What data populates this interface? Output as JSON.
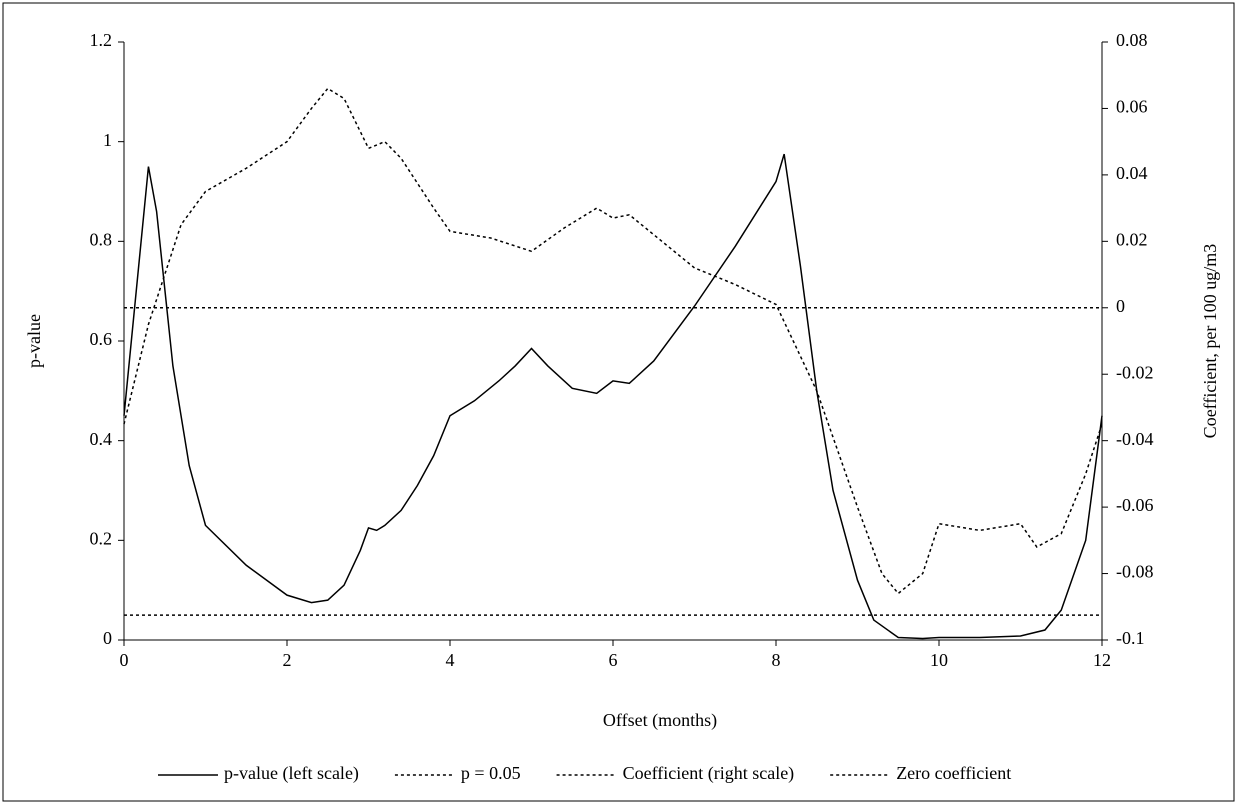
{
  "chart_data": {
    "type": "line",
    "xlabel": "Offset (months)",
    "ylabel": "p-value",
    "y2label": "Coefficient, per 100 ug/m3",
    "xlim": [
      0,
      12
    ],
    "xticks": [
      0,
      2,
      4,
      6,
      8,
      10,
      12
    ],
    "ylim": [
      0,
      1.2
    ],
    "yticks": [
      0,
      0.2,
      0.4,
      0.6,
      0.8,
      1,
      1.2
    ],
    "y2lim": [
      -0.1,
      0.08
    ],
    "y2ticks": [
      -0.1,
      -0.08,
      -0.06,
      -0.04,
      -0.02,
      0,
      0.02,
      0.04,
      0.06,
      0.08
    ],
    "legend": "bottom",
    "series": [
      {
        "name": "p-value (left scale)",
        "color": "#000000",
        "style": "solid",
        "axis": "y",
        "x": [
          0,
          0.3,
          0.4,
          0.6,
          0.8,
          1.0,
          1.5,
          2.0,
          2.3,
          2.5,
          2.7,
          2.9,
          3.0,
          3.1,
          3.2,
          3.4,
          3.6,
          3.8,
          4.0,
          4.3,
          4.6,
          4.8,
          5.0,
          5.2,
          5.5,
          5.8,
          6.0,
          6.2,
          6.5,
          7.0,
          7.5,
          8.0,
          8.1,
          8.3,
          8.5,
          8.7,
          9.0,
          9.2,
          9.5,
          9.8,
          10.0,
          10.5,
          11.0,
          11.3,
          11.5,
          11.8,
          12.0
        ],
        "values": [
          0.45,
          0.95,
          0.86,
          0.55,
          0.35,
          0.23,
          0.15,
          0.09,
          0.075,
          0.08,
          0.11,
          0.18,
          0.225,
          0.22,
          0.23,
          0.26,
          0.31,
          0.37,
          0.45,
          0.48,
          0.52,
          0.55,
          0.585,
          0.55,
          0.505,
          0.495,
          0.52,
          0.515,
          0.56,
          0.67,
          0.79,
          0.92,
          0.975,
          0.75,
          0.5,
          0.3,
          0.12,
          0.04,
          0.005,
          0.003,
          0.005,
          0.005,
          0.008,
          0.02,
          0.06,
          0.2,
          0.45
        ]
      },
      {
        "name": "p = 0.05",
        "color": "#000000",
        "style": "dotted",
        "axis": "y",
        "x": [
          0,
          12
        ],
        "values": [
          0.05,
          0.05
        ]
      },
      {
        "name": "Coefficient (right scale)",
        "color": "#000000",
        "style": "dotted",
        "axis": "y2",
        "x": [
          0,
          0.3,
          0.5,
          0.7,
          1.0,
          1.5,
          2.0,
          2.3,
          2.5,
          2.7,
          3.0,
          3.2,
          3.4,
          3.8,
          4.0,
          4.5,
          5.0,
          5.4,
          5.8,
          6.0,
          6.2,
          6.6,
          7.0,
          7.5,
          8.0,
          8.5,
          9.0,
          9.3,
          9.5,
          9.8,
          10.0,
          10.5,
          11.0,
          11.2,
          11.5,
          11.8,
          12.0
        ],
        "values": [
          -0.035,
          -0.005,
          0.01,
          0.025,
          0.035,
          0.042,
          0.05,
          0.06,
          0.066,
          0.063,
          0.048,
          0.05,
          0.045,
          0.03,
          0.023,
          0.021,
          0.017,
          0.024,
          0.03,
          0.027,
          0.028,
          0.02,
          0.012,
          0.007,
          0.001,
          -0.025,
          -0.06,
          -0.08,
          -0.086,
          -0.08,
          -0.065,
          -0.067,
          -0.065,
          -0.072,
          -0.068,
          -0.05,
          -0.035
        ]
      },
      {
        "name": "Zero coefficient",
        "color": "#000000",
        "style": "dotted",
        "axis": "y2",
        "x": [
          0,
          12
        ],
        "values": [
          0,
          0
        ]
      }
    ]
  }
}
